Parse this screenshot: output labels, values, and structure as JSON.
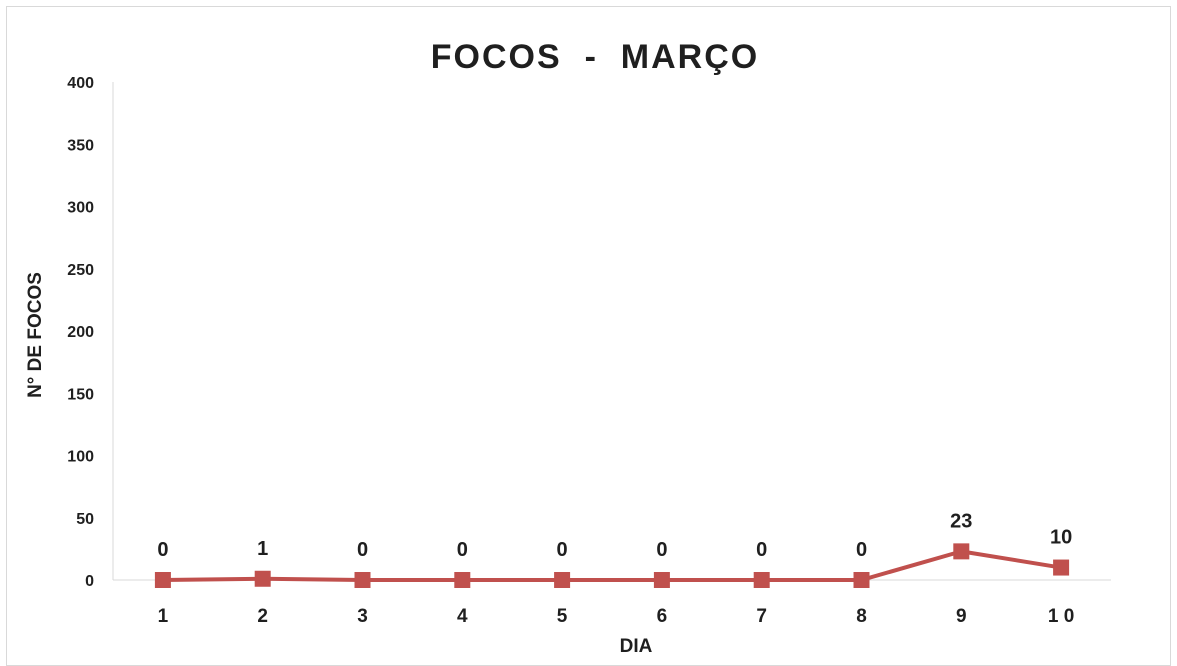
{
  "chart_data": {
    "type": "line",
    "title": "FOCOS  -  MARÇO",
    "xlabel": "DIA",
    "ylabel": "N° DE FOCOS",
    "categories": [
      "1",
      "2",
      "3",
      "4",
      "5",
      "6",
      "7",
      "8",
      "9",
      "1 0"
    ],
    "values": [
      0,
      1,
      0,
      0,
      0,
      0,
      0,
      0,
      23,
      10
    ],
    "data_labels": [
      "0",
      "1",
      "0",
      "0",
      "0",
      "0",
      "0",
      "0",
      "23",
      "10"
    ],
    "ylim": [
      0,
      400
    ],
    "yticks": [
      0,
      50,
      100,
      150,
      200,
      250,
      300,
      350,
      400
    ],
    "grid": false,
    "legend": "none",
    "line_color": "#c0504d",
    "marker": "square"
  }
}
